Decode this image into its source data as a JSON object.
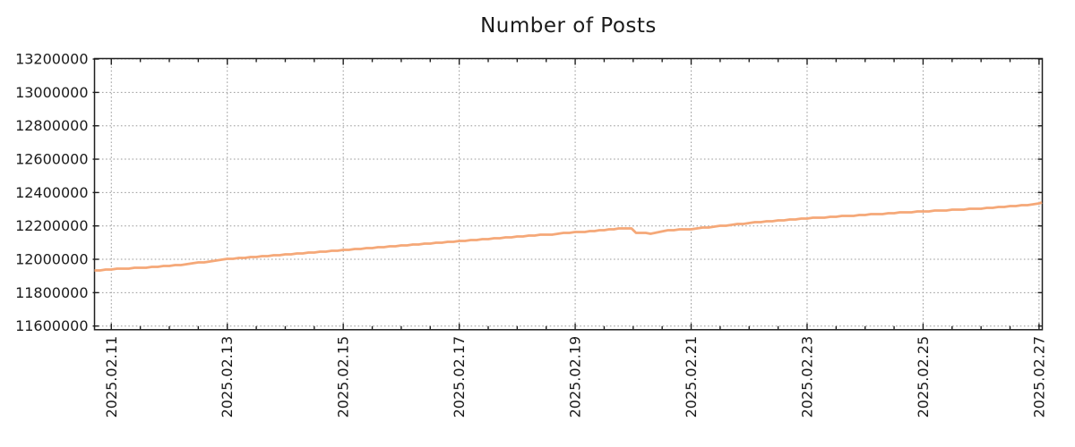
{
  "chart_data": {
    "type": "line",
    "title": "Number of Posts",
    "xlabel": "",
    "ylabel": "",
    "grid": true,
    "legend": "none",
    "background_color": "#ffffff",
    "border_color": "#1f1f1f",
    "grid_color": "#999999",
    "text_color": "#1b1b1b",
    "x_axis": {
      "unit": "date",
      "range_days": [
        10.71,
        27.056
      ],
      "minor_tick_step_days": 0.5,
      "ticks": [
        {
          "t": 11,
          "label": "2025.02.11"
        },
        {
          "t": 13,
          "label": "2025.02.13"
        },
        {
          "t": 15,
          "label": "2025.02.15"
        },
        {
          "t": 17,
          "label": "2025.02.17"
        },
        {
          "t": 19,
          "label": "2025.02.19"
        },
        {
          "t": 21,
          "label": "2025.02.21"
        },
        {
          "t": 23,
          "label": "2025.02.23"
        },
        {
          "t": 25,
          "label": "2025.02.25"
        },
        {
          "t": 27,
          "label": "2025.02.27"
        }
      ]
    },
    "y_axis": {
      "range": [
        11578000,
        13203000
      ],
      "gridline_range": [
        11600000,
        13200000
      ],
      "ticks": [
        {
          "v": 13200000,
          "label": "13200000"
        },
        {
          "v": 13000000,
          "label": "13000000"
        },
        {
          "v": 12800000,
          "label": "12800000"
        },
        {
          "v": 12600000,
          "label": "12600000"
        },
        {
          "v": 12400000,
          "label": "12400000"
        },
        {
          "v": 12200000,
          "label": "12200000"
        },
        {
          "v": 12000000,
          "label": "12000000"
        },
        {
          "v": 11800000,
          "label": "11800000"
        },
        {
          "v": 11600000,
          "label": "11600000"
        }
      ]
    },
    "series": [
      {
        "name": "number-of-posts",
        "color": "#f5a878",
        "line_width": 2.8,
        "points": [
          [
            10.71,
            11936000
          ],
          [
            11.0,
            11943000
          ],
          [
            11.5,
            11952000
          ],
          [
            12.0,
            11963000
          ],
          [
            12.5,
            11982000
          ],
          [
            13.0,
            12003000
          ],
          [
            13.5,
            12018000
          ],
          [
            14.0,
            12032000
          ],
          [
            14.5,
            12045000
          ],
          [
            15.0,
            12058000
          ],
          [
            15.5,
            12072000
          ],
          [
            16.0,
            12085000
          ],
          [
            16.5,
            12098000
          ],
          [
            17.0,
            12111000
          ],
          [
            17.5,
            12125000
          ],
          [
            18.0,
            12139000
          ],
          [
            18.5,
            12150000
          ],
          [
            19.0,
            12164000
          ],
          [
            19.25,
            12171000
          ],
          [
            19.5,
            12178000
          ],
          [
            19.75,
            12188000
          ],
          [
            19.9,
            12190000
          ],
          [
            19.97,
            12186000
          ],
          [
            20.05,
            12160000
          ],
          [
            20.3,
            12158000
          ],
          [
            20.45,
            12168000
          ],
          [
            20.6,
            12176000
          ],
          [
            21.0,
            12185000
          ],
          [
            21.5,
            12202000
          ],
          [
            22.0,
            12220000
          ],
          [
            22.5,
            12234000
          ],
          [
            23.0,
            12248000
          ],
          [
            23.5,
            12259000
          ],
          [
            24.0,
            12269000
          ],
          [
            24.5,
            12280000
          ],
          [
            25.0,
            12290000
          ],
          [
            25.5,
            12299000
          ],
          [
            26.0,
            12308000
          ],
          [
            26.5,
            12320000
          ],
          [
            27.0,
            12336000
          ],
          [
            27.05,
            12341000
          ]
        ]
      }
    ]
  }
}
